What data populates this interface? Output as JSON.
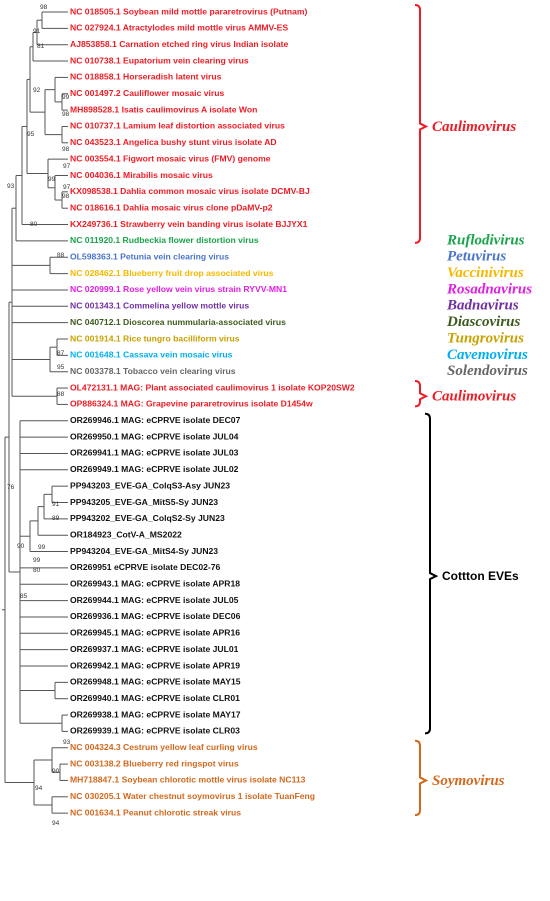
{
  "leaves": [
    {
      "label": "NC 018505.1 Soybean mild mottle pararetrovirus (Putnam)",
      "color": "#ee1c25"
    },
    {
      "label": "NC 027924.1 Atractylodes mild mottle virus AMMV-ES",
      "color": "#ee1c25"
    },
    {
      "label": "AJ853858.1 Carnation etched ring virus  Indian isolate",
      "color": "#ee1c25"
    },
    {
      "label": "NC 010738.1 Eupatorium vein clearing virus",
      "color": "#ee1c25"
    },
    {
      "label": "NC 018858.1 Horseradish latent virus",
      "color": "#ee1c25"
    },
    {
      "label": "NC 001497.2 Cauliflower mosaic virus",
      "color": "#ee1c25"
    },
    {
      "label": "MH898528.1 Isatis caulimovirus A isolate Won",
      "color": "#ee1c25"
    },
    {
      "label": "NC 010737.1 Lamium leaf distortion associated virus",
      "color": "#ee1c25"
    },
    {
      "label": "NC 043523.1 Angelica bushy stunt virus isolate AD",
      "color": "#ee1c25"
    },
    {
      "label": "NC 003554.1 Figwort mosaic virus (FMV) genome",
      "color": "#ee1c25"
    },
    {
      "label": "NC 004036.1 Mirabilis mosaic virus",
      "color": "#ee1c25"
    },
    {
      "label": "KX098538.1 Dahlia common mosaic virus isolate DCMV-BJ",
      "color": "#ee1c25"
    },
    {
      "label": "NC 018616.1 Dahlia mosaic virus clone pDaMV-p2",
      "color": "#ee1c25"
    },
    {
      "label": "KX249736.1 Strawberry vein banding virus isolate BJJYX1",
      "color": "#ee1c25"
    },
    {
      "label": "NC 011920.1 Rudbeckia flower distortion virus",
      "color": "#1aa34a"
    },
    {
      "label": "OL598363.1 Petunia vein clearing virus",
      "color": "#4a74c9"
    },
    {
      "label": "NC 028462.1 Blueberry fruit drop associated virus",
      "color": "#f5b800"
    },
    {
      "label": "NC 020999.1 Rose yellow vein virus strain RYVV-MN1",
      "color": "#e020e0"
    },
    {
      "label": "NC 001343.1 Commelina yellow mottle virus",
      "color": "#7030a0"
    },
    {
      "label": "NC 040712.1 Dioscorea nummularia-associated virus",
      "color": "#3d5a1e"
    },
    {
      "label": "NC 001914.1 Rice tungro bacilliform virus",
      "color": "#c9a100"
    },
    {
      "label": "NC 001648.1 Cassava vein mosaic virus",
      "color": "#00b0f0"
    },
    {
      "label": "NC 003378.1 Tobacco vein clearing virus",
      "color": "#666666"
    },
    {
      "label": "OL472131.1 MAG: Plant associated caulimovirus 1 isolate KOP20SW2",
      "color": "#ee1c25"
    },
    {
      "label": "OP886324.1 MAG: Grapevine pararetrovirus isolate D1454w",
      "color": "#ee1c25"
    },
    {
      "label": "OR269946.1 MAG: eCPRVE isolate DEC07",
      "color": "#111111"
    },
    {
      "label": "OR269950.1 MAG: eCPRVE isolate JUL04",
      "color": "#111111"
    },
    {
      "label": "OR269941.1 MAG: eCPRVE isolate JUL03",
      "color": "#111111"
    },
    {
      "label": "OR269949.1 MAG: eCPRVE isolate JUL02",
      "color": "#111111"
    },
    {
      "label": "PP943203_EVE-GA_ColqS3-Asy JUN23",
      "color": "#111111"
    },
    {
      "label": "PP943205_EVE-GA_MitS5-Sy JUN23",
      "color": "#111111"
    },
    {
      "label": "PP943202_EVE-GA_ColqS2-Sy JUN23",
      "color": "#111111"
    },
    {
      "label": "OR184923_CotV-A_MS2022",
      "color": "#111111"
    },
    {
      "label": "PP943204_EVE-GA_MitS4-Sy JUN23",
      "color": "#111111"
    },
    {
      "label": "OR269951 eCPRVE isolate DEC02-76",
      "color": "#111111"
    },
    {
      "label": "OR269943.1 MAG: eCPRVE isolate APR18",
      "color": "#111111"
    },
    {
      "label": "OR269944.1 MAG: eCPRVE isolate JUL05",
      "color": "#111111"
    },
    {
      "label": "OR269936.1 MAG: eCPRVE isolate DEC06",
      "color": "#111111"
    },
    {
      "label": "OR269945.1 MAG: eCPRVE isolate APR16",
      "color": "#111111"
    },
    {
      "label": "OR269937.1 MAG: eCPRVE isolate JUL01",
      "color": "#111111"
    },
    {
      "label": "OR269942.1 MAG: eCPRVE isolate APR19",
      "color": "#111111"
    },
    {
      "label": "OR269948.1 MAG: eCPRVE isolate MAY15",
      "color": "#111111"
    },
    {
      "label": "OR269940.1 MAG: eCPRVE isolate CLR01",
      "color": "#111111"
    },
    {
      "label": "OR269938.1 MAG: eCPRVE isolate MAY17",
      "color": "#111111"
    },
    {
      "label": "OR269939.1 MAG: eCPRVE isolate CLR03",
      "color": "#111111"
    },
    {
      "label": "NC 004324.3 Cestrum yellow leaf curling virus",
      "color": "#d2691e"
    },
    {
      "label": "NC 003138.2 Blueberry red ringspot virus",
      "color": "#d2691e"
    },
    {
      "label": "MH718847.1 Soybean chlorotic mottle virus isolate NC113",
      "color": "#d2691e"
    },
    {
      "label": "NC 030205.1 Water chestnut soymovirus 1 isolate TuanFeng",
      "color": "#d2691e"
    },
    {
      "label": "NC 001634.1 Peanut chlorotic streak virus",
      "color": "#d2691e"
    }
  ],
  "bootstrap": [
    98,
    91,
    81,
    92,
    99,
    98,
    95,
    98,
    97,
    99,
    97,
    98,
    93,
    80,
    88,
    87,
    95,
    88,
    76,
    91,
    89,
    99,
    99,
    80,
    90,
    85,
    93,
    90,
    94,
    94
  ],
  "clades": [
    {
      "label": "Caulimovirus",
      "color": "#ee1c25"
    },
    {
      "label": "Ruflodivirus",
      "color": "#1aa34a"
    },
    {
      "label": "Petuvirus",
      "color": "#4a74c9"
    },
    {
      "label": "Vaccinivirus",
      "color": "#f5b800"
    },
    {
      "label": "Rosadnavirus",
      "color": "#e020e0"
    },
    {
      "label": "Badnavirus",
      "color": "#7030a0"
    },
    {
      "label": "Diascovirus",
      "color": "#3d5a1e"
    },
    {
      "label": "Tungrovirus",
      "color": "#c9a100"
    },
    {
      "label": "Cavemovirus",
      "color": "#00b0f0"
    },
    {
      "label": "Solendovirus",
      "color": "#666666"
    },
    {
      "label": "Caulimovirus",
      "color": "#ee1c25"
    },
    {
      "label": "Cottton EVEs",
      "color": "#000000"
    },
    {
      "label": "Soymovirus",
      "color": "#d2691e"
    }
  ]
}
